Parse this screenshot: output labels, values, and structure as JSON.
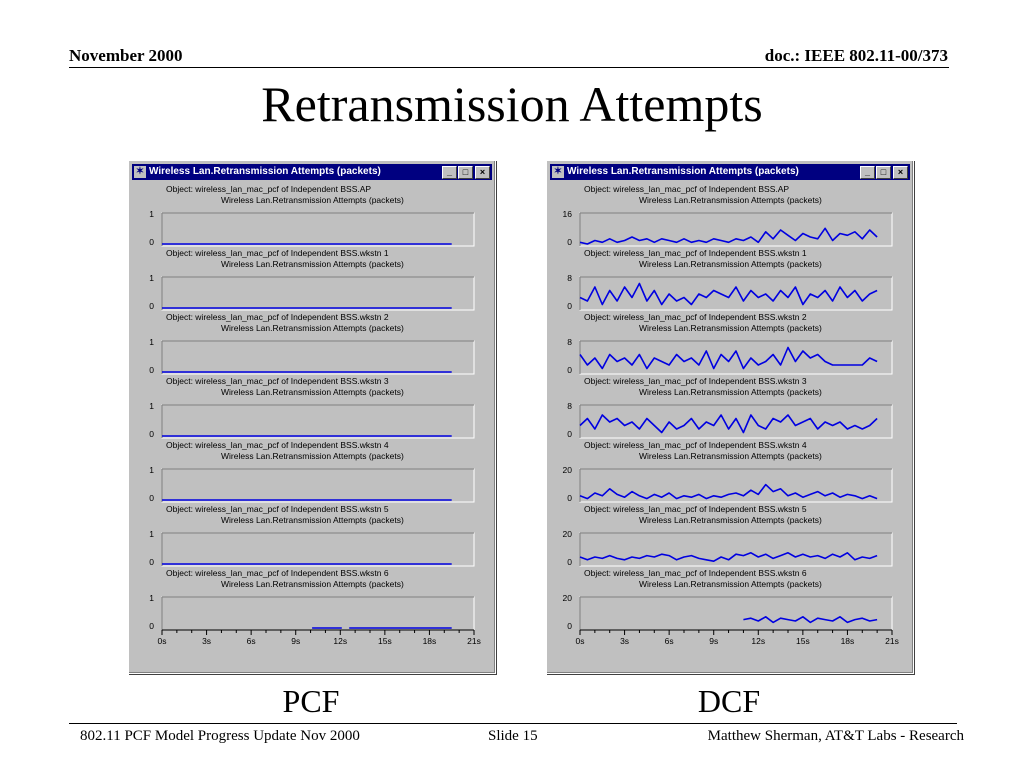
{
  "slide": {
    "date": "November 2000",
    "doc_id": "doc.: IEEE 802.11-00/373",
    "title": "Retransmission Attempts",
    "footer_left": "802.11 PCF Model Progress Update Nov 2000",
    "footer_center": "Slide 15",
    "footer_right": "Matthew Sherman, AT&T Labs - Research"
  },
  "windows": [
    {
      "caption": "PCF",
      "title": "Wireless Lan.Retransmission Attempts (packets)",
      "buttons": {
        "minimize": "_",
        "maximize": "□",
        "close": "×"
      }
    },
    {
      "caption": "DCF",
      "title": "Wireless Lan.Retransmission Attempts (packets)",
      "buttons": {
        "minimize": "_",
        "maximize": "□",
        "close": "×"
      }
    }
  ],
  "chart_data": [
    {
      "type": "line",
      "window": "PCF",
      "x_tick_labels": [
        "0s",
        "3s",
        "6s",
        "9s",
        "12s",
        "15s",
        "18s",
        "21s"
      ],
      "xlim": [
        0,
        21
      ],
      "stat_label": "Wireless Lan.Retransmission Attempts (packets)",
      "panels": [
        {
          "object_label": "Object: wireless_lan_mac_pcf of Independent BSS.AP",
          "ylim": [
            0,
            1
          ],
          "y_tick_labels": [
            "1",
            "0"
          ],
          "segments": [
            {
              "x": [
                0,
                19.5
              ],
              "y": [
                0,
                0
              ]
            }
          ]
        },
        {
          "object_label": "Object: wireless_lan_mac_pcf of Independent BSS.wkstn 1",
          "ylim": [
            0,
            1
          ],
          "y_tick_labels": [
            "1",
            "0"
          ],
          "segments": [
            {
              "x": [
                0,
                19.5
              ],
              "y": [
                0,
                0
              ]
            }
          ]
        },
        {
          "object_label": "Object: wireless_lan_mac_pcf of Independent BSS.wkstn 2",
          "ylim": [
            0,
            1
          ],
          "y_tick_labels": [
            "1",
            "0"
          ],
          "segments": [
            {
              "x": [
                0,
                19.5
              ],
              "y": [
                0,
                0
              ]
            }
          ]
        },
        {
          "object_label": "Object: wireless_lan_mac_pcf of Independent BSS.wkstn 3",
          "ylim": [
            0,
            1
          ],
          "y_tick_labels": [
            "1",
            "0"
          ],
          "segments": [
            {
              "x": [
                0,
                19.5
              ],
              "y": [
                0,
                0
              ]
            }
          ]
        },
        {
          "object_label": "Object: wireless_lan_mac_pcf of Independent BSS.wkstn 4",
          "ylim": [
            0,
            1
          ],
          "y_tick_labels": [
            "1",
            "0"
          ],
          "segments": [
            {
              "x": [
                0,
                19.5
              ],
              "y": [
                0,
                0
              ]
            }
          ]
        },
        {
          "object_label": "Object: wireless_lan_mac_pcf of Independent BSS.wkstn 5",
          "ylim": [
            0,
            1
          ],
          "y_tick_labels": [
            "1",
            "0"
          ],
          "segments": [
            {
              "x": [
                0,
                19.5
              ],
              "y": [
                0,
                0
              ]
            }
          ]
        },
        {
          "object_label": "Object: wireless_lan_mac_pcf of Independent BSS.wkstn 6",
          "ylim": [
            0,
            1
          ],
          "y_tick_labels": [
            "1",
            "0"
          ],
          "segments": [
            {
              "x": [
                10.1,
                12.1
              ],
              "y": [
                0,
                0
              ]
            },
            {
              "x": [
                12.6,
                19.5
              ],
              "y": [
                0,
                0
              ]
            }
          ]
        }
      ]
    },
    {
      "type": "line",
      "window": "DCF",
      "x_tick_labels": [
        "0s",
        "3s",
        "6s",
        "9s",
        "12s",
        "15s",
        "18s",
        "21s"
      ],
      "xlim": [
        0,
        21
      ],
      "stat_label": "Wireless Lan.Retransmission Attempts (packets)",
      "panels": [
        {
          "object_label": "Object: wireless_lan_mac_pcf of Independent BSS.AP",
          "ylim": [
            0,
            16
          ],
          "y_tick_labels": [
            "16",
            "0"
          ],
          "segments": [
            {
              "x": [
                0,
                0.5,
                1,
                1.5,
                2,
                2.5,
                3,
                3.5,
                4,
                4.5,
                5,
                5.5,
                6,
                6.5,
                7,
                7.5,
                8,
                8.5,
                9,
                9.5,
                10,
                10.5,
                11,
                11.5,
                12,
                12.5,
                13,
                13.5,
                14,
                14.5,
                15,
                15.5,
                16,
                16.5,
                17,
                17.5,
                18,
                18.5,
                19,
                19.5,
                20
              ],
              "y": [
                1,
                0,
                2,
                1,
                3,
                1,
                2,
                4,
                2,
                3,
                1,
                3,
                2,
                1,
                3,
                1,
                2,
                1,
                3,
                2,
                1,
                3,
                2,
                4,
                1,
                7,
                3,
                8,
                5,
                2,
                6,
                4,
                3,
                9,
                2,
                6,
                5,
                7,
                3,
                8,
                4
              ]
            }
          ]
        },
        {
          "object_label": "Object: wireless_lan_mac_pcf of Independent BSS.wkstn 1",
          "ylim": [
            0,
            8
          ],
          "y_tick_labels": [
            "8",
            "0"
          ],
          "segments": [
            {
              "x": [
                0,
                0.5,
                1,
                1.5,
                2,
                2.5,
                3,
                3.5,
                4,
                4.5,
                5,
                5.5,
                6,
                6.5,
                7,
                7.5,
                8,
                8.5,
                9,
                9.5,
                10,
                10.5,
                11,
                11.5,
                12,
                12.5,
                13,
                13.5,
                14,
                14.5,
                15,
                15.5,
                16,
                16.5,
                17,
                17.5,
                18,
                18.5,
                19,
                19.5,
                20
              ],
              "y": [
                3,
                2,
                6,
                1,
                5,
                2,
                6,
                3,
                7,
                2,
                5,
                1,
                4,
                2,
                3,
                1,
                4,
                3,
                5,
                4,
                3,
                6,
                2,
                5,
                3,
                4,
                2,
                5,
                3,
                6,
                1,
                4,
                3,
                5,
                2,
                6,
                3,
                5,
                2,
                4,
                5
              ]
            }
          ]
        },
        {
          "object_label": "Object: wireless_lan_mac_pcf of Independent BSS.wkstn 2",
          "ylim": [
            0,
            8
          ],
          "y_tick_labels": [
            "8",
            "0"
          ],
          "segments": [
            {
              "x": [
                0,
                0.5,
                1,
                1.5,
                2,
                2.5,
                3,
                3.5,
                4,
                4.5,
                5,
                5.5,
                6,
                6.5,
                7,
                7.5,
                8,
                8.5,
                9,
                9.5,
                10,
                10.5,
                11,
                11.5,
                12,
                12.5,
                13,
                13.5,
                14,
                14.5,
                15,
                15.5,
                16,
                16.5,
                17,
                17.5,
                18,
                18.5,
                19,
                19.5,
                20
              ],
              "y": [
                5,
                2,
                4,
                1,
                5,
                3,
                4,
                2,
                5,
                1,
                4,
                3,
                2,
                5,
                3,
                4,
                2,
                6,
                1,
                5,
                3,
                6,
                1,
                4,
                2,
                3,
                5,
                2,
                7,
                3,
                6,
                4,
                5,
                3,
                2,
                2,
                2,
                2,
                2,
                4,
                3
              ]
            }
          ]
        },
        {
          "object_label": "Object: wireless_lan_mac_pcf of Independent BSS.wkstn 3",
          "ylim": [
            0,
            8
          ],
          "y_tick_labels": [
            "8",
            "0"
          ],
          "segments": [
            {
              "x": [
                0,
                0.5,
                1,
                1.5,
                2,
                2.5,
                3,
                3.5,
                4,
                4.5,
                5,
                5.5,
                6,
                6.5,
                7,
                7.5,
                8,
                8.5,
                9,
                9.5,
                10,
                10.5,
                11,
                11.5,
                12,
                12.5,
                13,
                13.5,
                14,
                14.5,
                15,
                15.5,
                16,
                16.5,
                17,
                17.5,
                18,
                18.5,
                19,
                19.5,
                20
              ],
              "y": [
                3,
                5,
                2,
                6,
                4,
                5,
                3,
                4,
                2,
                5,
                3,
                1,
                4,
                2,
                3,
                5,
                2,
                4,
                3,
                6,
                2,
                5,
                1,
                6,
                3,
                2,
                5,
                4,
                6,
                3,
                4,
                5,
                2,
                4,
                3,
                4,
                2,
                3,
                2,
                3,
                5
              ]
            }
          ]
        },
        {
          "object_label": "Object: wireless_lan_mac_pcf of Independent BSS.wkstn 4",
          "ylim": [
            0,
            20
          ],
          "y_tick_labels": [
            "20",
            "0"
          ],
          "segments": [
            {
              "x": [
                0,
                0.5,
                1,
                1.5,
                2,
                2.5,
                3,
                3.5,
                4,
                4.5,
                5,
                5.5,
                6,
                6.5,
                7,
                7.5,
                8,
                8.5,
                9,
                9.5,
                10,
                10.5,
                11,
                11.5,
                12,
                12.5,
                13,
                13.5,
                14,
                14.5,
                15,
                15.5,
                16,
                16.5,
                17,
                17.5,
                18,
                18.5,
                19,
                19.5,
                20
              ],
              "y": [
                3,
                1,
                5,
                3,
                8,
                4,
                2,
                6,
                3,
                1,
                4,
                2,
                5,
                1,
                3,
                2,
                4,
                1,
                3,
                2,
                4,
                5,
                3,
                7,
                4,
                11,
                6,
                8,
                3,
                5,
                2,
                4,
                6,
                3,
                5,
                2,
                4,
                3,
                1,
                3,
                1
              ]
            }
          ]
        },
        {
          "object_label": "Object: wireless_lan_mac_pcf of Independent BSS.wkstn 5",
          "ylim": [
            0,
            20
          ],
          "y_tick_labels": [
            "20",
            "0"
          ],
          "segments": [
            {
              "x": [
                0,
                0.5,
                1,
                1.5,
                2,
                2.5,
                3,
                3.5,
                4,
                4.5,
                5,
                5.5,
                6,
                6.5,
                7,
                7.5,
                8,
                8.5,
                9,
                9.5,
                10,
                10.5,
                11,
                11.5,
                12,
                12.5,
                13,
                13.5,
                14,
                14.5,
                15,
                15.5,
                16,
                16.5,
                17,
                17.5,
                18,
                18.5,
                19,
                19.5,
                20
              ],
              "y": [
                5,
                3,
                5,
                4,
                6,
                4,
                3,
                5,
                4,
                6,
                5,
                7,
                6,
                3,
                5,
                6,
                4,
                3,
                2,
                5,
                3,
                7,
                6,
                8,
                5,
                7,
                4,
                6,
                8,
                5,
                7,
                5,
                6,
                4,
                7,
                5,
                8,
                3,
                5,
                4,
                6
              ]
            }
          ]
        },
        {
          "object_label": "Object: wireless_lan_mac_pcf of Independent BSS.wkstn 6",
          "ylim": [
            0,
            20
          ],
          "y_tick_labels": [
            "20",
            "0"
          ],
          "segments": [
            {
              "x": [
                11,
                11.5,
                12,
                12.5,
                13,
                13.5,
                14,
                14.5,
                15,
                15.5,
                16,
                16.5,
                17,
                17.5,
                18,
                18.5,
                19,
                19.5,
                20
              ],
              "y": [
                6,
                7,
                5,
                8,
                4,
                7,
                6,
                5,
                8,
                4,
                7,
                6,
                5,
                8,
                4,
                6,
                7,
                5,
                6
              ]
            }
          ]
        }
      ]
    }
  ]
}
